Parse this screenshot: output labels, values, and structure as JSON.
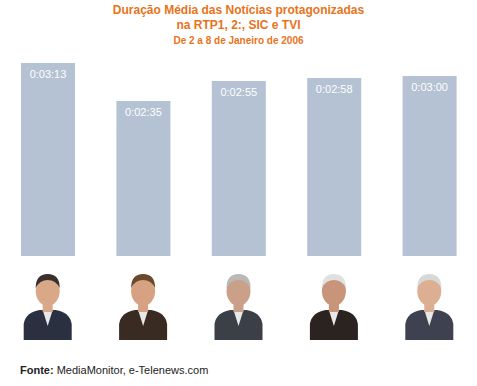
{
  "chart_data": {
    "type": "bar",
    "title": "Duração Média das Notícias protagonizadas\nna RTP1, 2:, SIC e TVI",
    "subtitle": "De 2 a 8 de Janeiro de 2006",
    "source_label": "Fonte:",
    "source": "MediaMonitor, e-Telenews.com",
    "categories": [
      null,
      null,
      null,
      null,
      null
    ],
    "values": [
      193,
      155,
      175,
      178,
      180
    ],
    "value_labels": [
      "0:03:13",
      "0:02:35",
      "0:02:55",
      "0:02:58",
      "0:03:00"
    ],
    "color": "#b4c2d3",
    "ylim": [
      0,
      193
    ],
    "tick_labels": false,
    "data_labels": true,
    "grid": false
  }
}
